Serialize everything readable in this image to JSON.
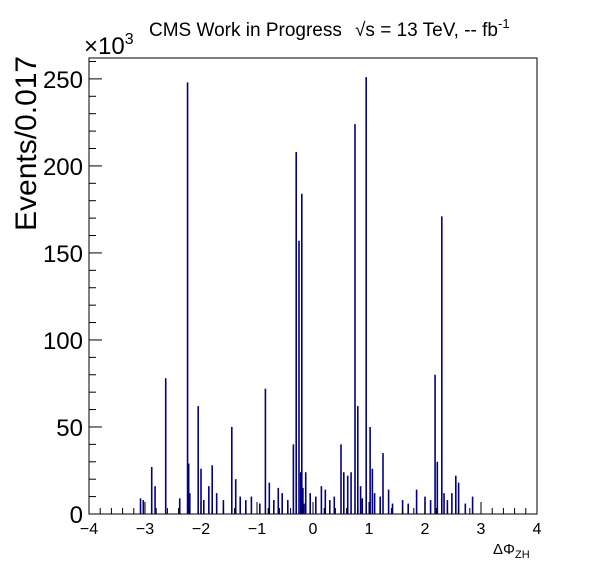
{
  "chart_data": {
    "type": "bar",
    "title": "CMS Work in Progress",
    "energy_label": "√s = 13 TeV, -- fb",
    "energy_superscript": "-1",
    "ylabel": "Events/0.017",
    "xlabel_main": "ΔΦ",
    "xlabel_sub": "ZH",
    "multiplier_base": "×10",
    "multiplier_exp": "3",
    "xlim": [
      -4,
      4
    ],
    "ylim": [
      0,
      262
    ],
    "x_ticks": [
      -4,
      -3,
      -2,
      -1,
      0,
      1,
      2,
      3,
      4
    ],
    "x_tick_labels": [
      "−4",
      "−3",
      "−2",
      "−1",
      "0",
      "1",
      "2",
      "3",
      "4"
    ],
    "y_ticks": [
      0,
      50,
      100,
      150,
      200,
      250
    ],
    "y_tick_labels": [
      "0",
      "50",
      "100",
      "150",
      "200",
      "250"
    ],
    "line_color": "#000080",
    "peaks": {
      "x": [
        -3.08,
        -3.03,
        -2.88,
        -2.82,
        -2.63,
        -2.38,
        -2.24,
        -2.22,
        -2.2,
        -2.05,
        -2.0,
        -1.95,
        -1.86,
        -1.8,
        -1.72,
        -1.6,
        -1.45,
        -1.38,
        -1.3,
        -1.2,
        -1.1,
        -0.95,
        -0.85,
        -0.78,
        -0.7,
        -0.62,
        -0.55,
        -0.45,
        -0.35,
        -0.3,
        -0.25,
        -0.22,
        -0.2,
        -0.18,
        -0.16,
        -0.13,
        -0.05,
        0.05,
        0.15,
        0.22,
        0.3,
        0.38,
        0.5,
        0.55,
        0.62,
        0.68,
        0.75,
        0.8,
        0.85,
        0.88,
        0.95,
        1.02,
        1.06,
        1.1,
        1.2,
        1.25,
        1.35,
        1.42,
        1.6,
        1.7,
        1.85,
        2.0,
        2.1,
        2.18,
        2.22,
        2.3,
        2.34,
        2.4,
        2.48,
        2.55,
        2.6,
        2.72,
        2.85
      ],
      "y": [
        9,
        8,
        27,
        16,
        78,
        9,
        248,
        29,
        12,
        62,
        26,
        8,
        16,
        28,
        12,
        8,
        50,
        20,
        10,
        8,
        10,
        6,
        72,
        18,
        8,
        15,
        12,
        8,
        40,
        208,
        157,
        24,
        184,
        15,
        6,
        24,
        12,
        10,
        16,
        14,
        8,
        10,
        40,
        24,
        22,
        24,
        224,
        62,
        16,
        9,
        251,
        50,
        26,
        12,
        10,
        35,
        14,
        6,
        8,
        6,
        14,
        10,
        8,
        80,
        30,
        171,
        12,
        8,
        12,
        22,
        18,
        6,
        10
      ]
    }
  }
}
